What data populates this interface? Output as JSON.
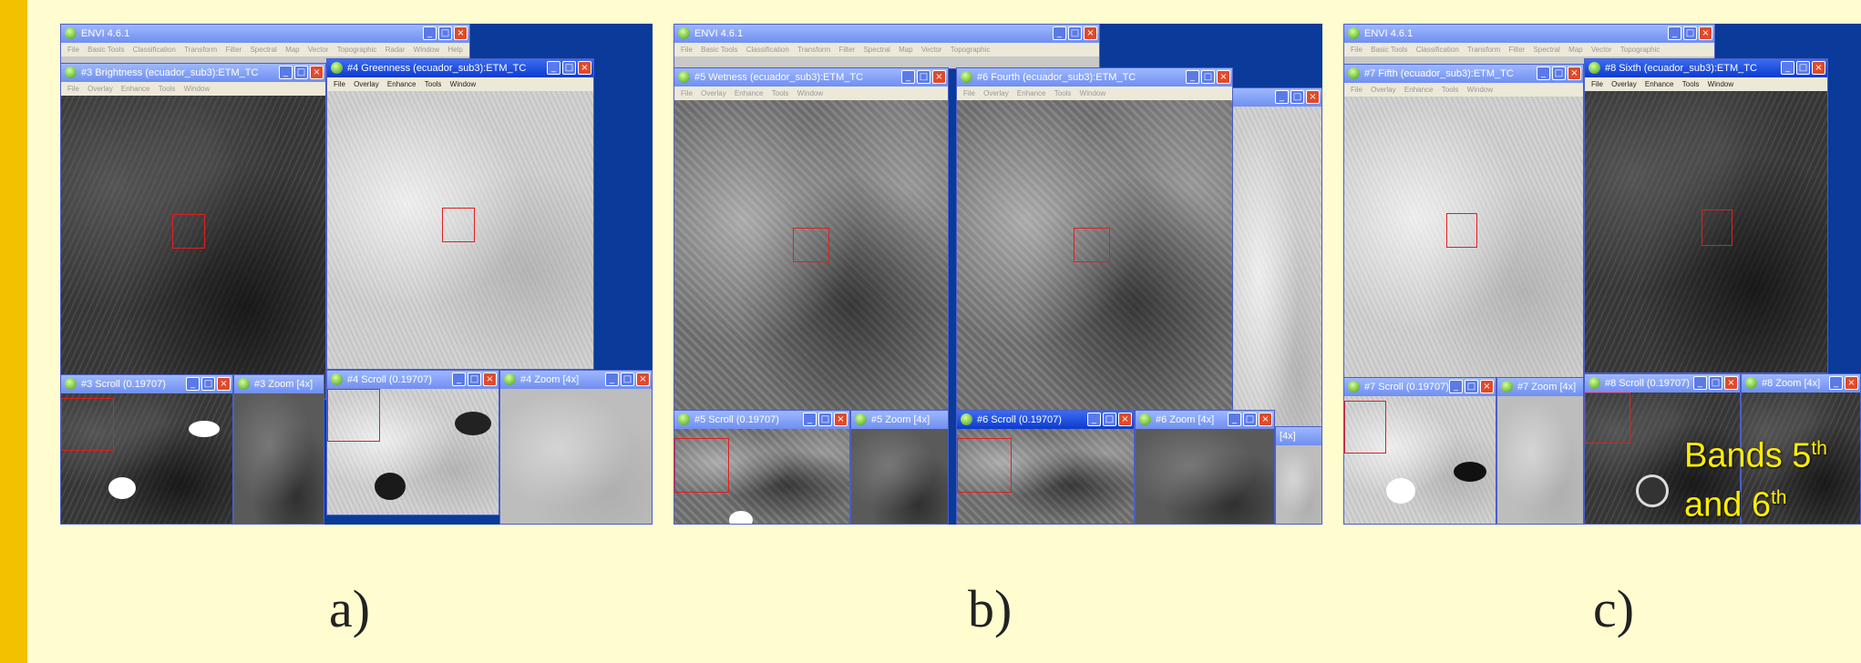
{
  "envi_version_title": "ENVI 4.6.1",
  "envi_menu": [
    "File",
    "Basic Tools",
    "Classification",
    "Transform",
    "Filter",
    "Spectral",
    "Map",
    "Vector",
    "Topographic",
    "Radar",
    "Window",
    "Help"
  ],
  "image_menu": [
    "File",
    "Overlay",
    "Enhance",
    "Tools",
    "Window"
  ],
  "panel_a": {
    "label": "a)",
    "brightness_title": "#3 Brightness (ecuador_sub3):ETM_TC",
    "greenness_title": "#4 Greenness (ecuador_sub3):ETM_TC",
    "scroll3_title": "#3 Scroll (0.19707)",
    "zoom3_title": "#3 Zoom [4x]",
    "scroll4_title": "#4 Scroll (0.19707)",
    "zoom4_title": "#4 Zoom [4x]"
  },
  "panel_b": {
    "label": "b)",
    "wetness_title": "#5 Wetness (ecuador_sub3):ETM_TC",
    "fourth_title": "#6 Fourth (ecuador_sub3):ETM_TC",
    "scroll5_title": "#5 Scroll (0.19707)",
    "zoom5_title": "#5 Zoom [4x]",
    "scroll6_title": "#6 Scroll (0.19707)",
    "zoom6_title": "#6 Zoom [4x]",
    "partial_zoom_title": "[4x]"
  },
  "panel_c": {
    "label": "c)",
    "fifth_title": "#7 Fifth (ecuador_sub3):ETM_TC",
    "sixth_title": "#8 Sixth (ecuador_sub3):ETM_TC",
    "scroll7_title": "#7 Scroll (0.19707)",
    "zoom7_title": "#7 Zoom [4x]",
    "scroll8_title": "#8 Scroll (0.19707)",
    "zoom8_title": "#8 Zoom [4x]",
    "note_line1": "Bands 5",
    "note_sup1": "th",
    "note_line2": "and 6",
    "note_sup2": "th"
  },
  "window_controls": {
    "minimize": "_",
    "maximize": "□",
    "close": "×"
  },
  "colors": {
    "accent_bar": "#f2c200",
    "background": "#fffdd0",
    "desktop": "#0a3a9a",
    "roi": "#e02020",
    "note_text": "#ffee00"
  }
}
